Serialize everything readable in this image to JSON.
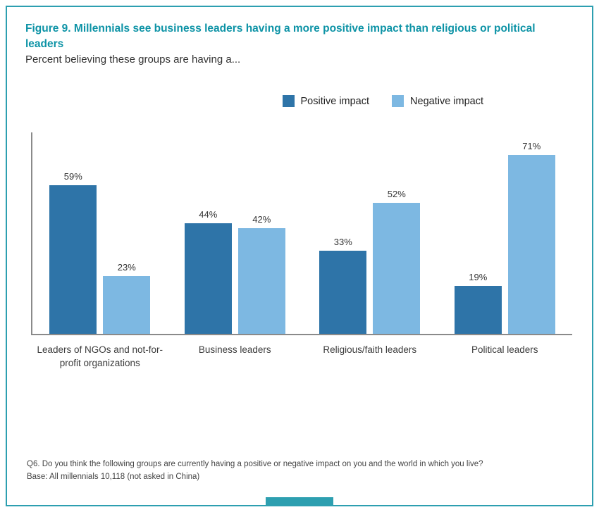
{
  "colors": {
    "teal_border": "#2d9fb0",
    "teal_title": "#0d93a6",
    "positive_impact": "#2e74a8",
    "negative_impact": "#7db8e2",
    "axis": "#8a8a8a",
    "value_text": "#333333"
  },
  "header": {
    "title": "Figure 9. Millennials see business leaders having a more positive impact than religious or political leaders",
    "subtitle": "Percent believing these groups are having a..."
  },
  "chart_data": {
    "type": "bar",
    "title": "Figure 9. Millennials see business leaders having a more positive impact than religious or political leaders",
    "subtitle": "Percent believing these groups are having a...",
    "categories": [
      "Leaders of NGOs and not-for-profit organizations",
      "Business leaders",
      "Religious/faith leaders",
      "Political leaders"
    ],
    "series": [
      {
        "name": "Positive impact",
        "color": "#2e74a8",
        "values": [
          59,
          44,
          33,
          19
        ]
      },
      {
        "name": "Negative impact",
        "color": "#7db8e2",
        "values": [
          23,
          42,
          52,
          71
        ]
      }
    ],
    "value_suffix": "%",
    "xlabel": "",
    "ylabel": "",
    "ylim": [
      0,
      80
    ],
    "grid": false,
    "legend_position": "top-right"
  },
  "footnotes": {
    "line1": "Q6. Do you think the following groups are currently having a positive or negative impact on you and the world in which you live?",
    "line2": "Base: All millennials 10,118 (not asked in China)"
  }
}
